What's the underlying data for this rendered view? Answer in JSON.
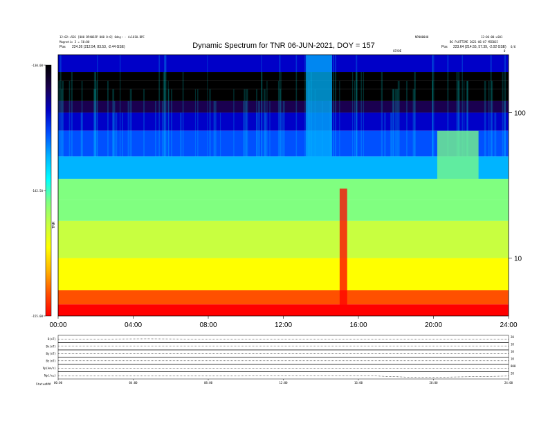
{
  "header": {
    "title": "Dynamic Spectrum for TNR 06-JUN-2021, DOY = 157",
    "top_left_line1": "12:02:+501 [000 BP4065P 000 0:0] 0day: - 4+1010.BPC",
    "top_left_line2": "Magnetic 3 = 50:00",
    "top_left_pos_label": "Pos",
    "top_left_pos_value": "224.26 (212.54, 83.53, -2.44 GSE)",
    "top_center_small": "NP000040",
    "top_right_line1": "12:06:00:+001",
    "top_right_line2": "BG PLOTTIME 2021-06-07 MCD015",
    "top_right_pos_label": "Pos",
    "top_right_pos_value": "223.64 (214.55, 57.39, -2.02 GSE)",
    "right_corner_tag": "0",
    "right_corner_tag2": "6/6",
    "mid_tag": "GSYOE"
  },
  "colorbar": {
    "tick_labels": [
      "-130.00",
      "-142.50",
      "-155.00"
    ],
    "tick_values": [
      -130,
      -142.5,
      -155
    ],
    "axis_title": "TNR"
  },
  "colors": {
    "palette": [
      "#000000",
      "#1a0050",
      "#0000c8",
      "#0050ff",
      "#00b4ff",
      "#00ffff",
      "#80ff80",
      "#c8ff40",
      "#ffff00",
      "#ffb400",
      "#ff5000",
      "#ff0000"
    ]
  },
  "chart_data": [
    {
      "type": "heatmap",
      "title": "Dynamic Spectrum for TNR 06-JUN-2021, DOY = 157",
      "x_tick_labels": [
        "00:00",
        "04:00",
        "08:00",
        "12:00",
        "16:00",
        "20:00",
        "24:00"
      ],
      "x_tick_hours": [
        0,
        4,
        8,
        12,
        16,
        20,
        24
      ],
      "xlim_hours": [
        0,
        24
      ],
      "y_tick_labels": [
        "100",
        "10"
      ],
      "y_tick_values": [
        100,
        10
      ],
      "y_scale": "log",
      "ylim": [
        4,
        250
      ],
      "zlim": [
        -155,
        -130
      ],
      "bands": [
        {
          "ylo": 190,
          "yhi": 250,
          "z": -134
        },
        {
          "ylo": 165,
          "yhi": 190,
          "z": -131
        },
        {
          "ylo": 145,
          "yhi": 165,
          "z": -130
        },
        {
          "ylo": 120,
          "yhi": 145,
          "z": -130
        },
        {
          "ylo": 100,
          "yhi": 120,
          "z": -132
        },
        {
          "ylo": 75,
          "yhi": 100,
          "z": -135
        },
        {
          "ylo": 50,
          "yhi": 75,
          "z": -137
        },
        {
          "ylo": 35,
          "yhi": 50,
          "z": -140
        },
        {
          "ylo": 25,
          "yhi": 35,
          "z": -142.5
        },
        {
          "ylo": 18,
          "yhi": 25,
          "z": -144
        },
        {
          "ylo": 10,
          "yhi": 18,
          "z": -146
        },
        {
          "ylo": 6,
          "yhi": 10,
          "z": -148.5
        },
        {
          "ylo": 4.8,
          "yhi": 6,
          "z": -152
        },
        {
          "ylo": 4,
          "yhi": 4.8,
          "z": -154.5
        }
      ],
      "events": [
        {
          "t0": 13.2,
          "t1": 14.6,
          "ylo": 40,
          "yhi": 250,
          "z": -139
        },
        {
          "t0": 15.0,
          "t1": 15.4,
          "ylo": 4,
          "yhi": 30,
          "z": -154
        },
        {
          "t0": 20.2,
          "t1": 22.4,
          "ylo": 28,
          "yhi": 75,
          "z": -144
        }
      ]
    },
    {
      "type": "line",
      "x_tick_labels": [
        "00:00",
        "04:00",
        "08:00",
        "12:00",
        "16:00",
        "20:00",
        "24:00"
      ],
      "panels": [
        {
          "label": "B(nT)",
          "right_label": "20",
          "values": [
            0.5,
            0.5,
            0.52,
            0.5,
            0.5,
            0.5,
            0.5,
            0.5,
            0.5,
            0.5,
            0.5
          ]
        },
        {
          "label": "Bx(nT)",
          "right_label": "10",
          "values": [
            0.5,
            0.5,
            0.5,
            0.5,
            0.5,
            0.5,
            0.5,
            0.5,
            0.5,
            0.5,
            0.5
          ]
        },
        {
          "label": "By(nT)",
          "right_label": "10",
          "values": [
            0.5,
            0.5,
            0.5,
            0.5,
            0.5,
            0.5,
            0.5,
            0.5,
            0.5,
            0.5,
            0.5
          ]
        },
        {
          "label": "Bz(nT)",
          "right_label": "10",
          "values": [
            0.5,
            0.5,
            0.5,
            0.5,
            0.5,
            0.5,
            0.5,
            0.5,
            0.5,
            0.5,
            0.5
          ]
        },
        {
          "label": "Vp(km/s)",
          "right_label": "800",
          "values": [
            0.5,
            0.5,
            0.5,
            0.5,
            0.5,
            0.5,
            0.5,
            0.5,
            0.5,
            0.5,
            0.5
          ]
        },
        {
          "label": "Np(/cc)",
          "right_label": "20",
          "values": [
            0.4,
            0.4,
            0.4,
            0.4,
            0.4,
            0.42,
            0.45,
            0.42,
            0.2,
            0.3,
            0.4
          ]
        }
      ],
      "status_label": "Status",
      "status_value": "###"
    }
  ]
}
